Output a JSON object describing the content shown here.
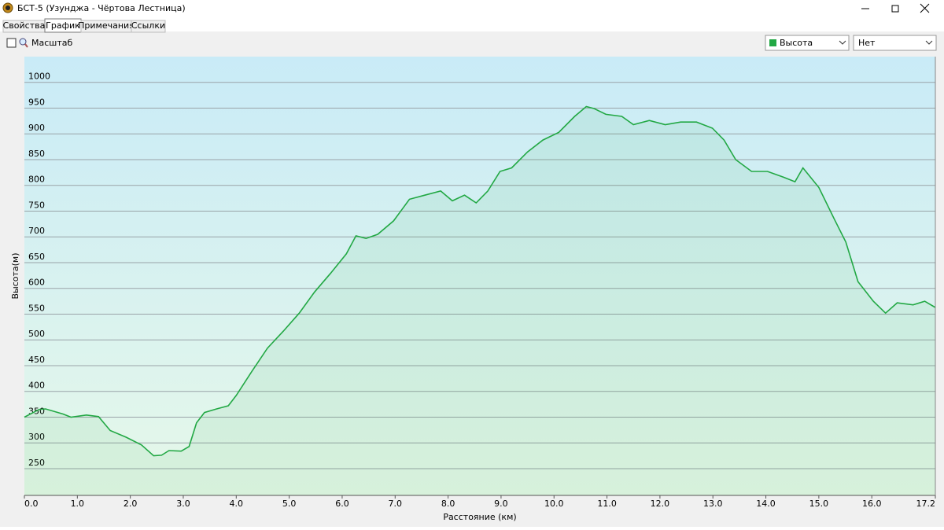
{
  "window": {
    "title": "БСТ-5 (Узунджа - Чёртова Лестница)"
  },
  "tabs": [
    "Свойства",
    "График",
    "Примечания",
    "Ссылки"
  ],
  "toolbar": {
    "scale_label": "Масштаб",
    "series_select": "Высота",
    "second_select": "Нет"
  },
  "chart_data": {
    "type": "area",
    "color": "#22a844",
    "grid": true,
    "x_label": "Расстояние  (км)",
    "y_label": "Высота(м)",
    "x": [
      0,
      0.28,
      0.4,
      0.73,
      0.88,
      1.17,
      1.4,
      1.62,
      1.92,
      2.21,
      2.44,
      2.59,
      2.73,
      2.96,
      3.11,
      3.25,
      3.4,
      3.63,
      3.85,
      4.0,
      4.29,
      4.59,
      4.89,
      5.19,
      5.48,
      5.78,
      6.08,
      6.26,
      6.45,
      6.67,
      6.97,
      7.27,
      7.56,
      7.86,
      8.08,
      8.31,
      8.53,
      8.75,
      8.98,
      9.2,
      9.5,
      9.79,
      10.09,
      10.39,
      10.61,
      10.76,
      10.98,
      11.28,
      11.5,
      11.8,
      12.1,
      12.39,
      12.69,
      12.99,
      13.21,
      13.43,
      13.73,
      14.03,
      14.33,
      14.55,
      14.7,
      15.0,
      15.29,
      15.51,
      15.74,
      16.03,
      16.26,
      16.48,
      16.78,
      17.0,
      17.2
    ],
    "values": [
      350,
      365,
      366,
      356,
      350,
      354,
      351,
      324,
      311,
      296,
      275,
      276,
      285,
      284,
      293,
      339,
      359,
      366,
      372,
      392,
      438,
      484,
      517,
      552,
      593,
      629,
      667,
      702,
      697,
      705,
      731,
      773,
      781,
      789,
      770,
      781,
      766,
      789,
      827,
      834,
      865,
      888,
      903,
      934,
      953,
      949,
      938,
      934,
      918,
      926,
      918,
      923,
      923,
      911,
      888,
      850,
      827,
      827,
      816,
      807,
      834,
      796,
      735,
      690,
      613,
      575,
      552,
      572,
      568,
      575,
      563
    ],
    "xlim": [
      0,
      17.2
    ],
    "xticks": [
      {
        "value": 0,
        "label": "0.0"
      },
      {
        "value": 1,
        "label": "1.0"
      },
      {
        "value": 2,
        "label": "2.0"
      },
      {
        "value": 3,
        "label": "3.0"
      },
      {
        "value": 4,
        "label": "4.0"
      },
      {
        "value": 5,
        "label": "5.0"
      },
      {
        "value": 6,
        "label": "6.0"
      },
      {
        "value": 7,
        "label": "7.0"
      },
      {
        "value": 8,
        "label": "8.0"
      },
      {
        "value": 9,
        "label": "9.0"
      },
      {
        "value": 10,
        "label": "10.0"
      },
      {
        "value": 11,
        "label": "11.0"
      },
      {
        "value": 12,
        "label": "12.0"
      },
      {
        "value": 13,
        "label": "13.0"
      },
      {
        "value": 14,
        "label": "14.0"
      },
      {
        "value": 15,
        "label": "15.0"
      },
      {
        "value": 16,
        "label": "16.0"
      },
      {
        "value": 17.2,
        "label": "17.2"
      }
    ],
    "ylim": [
      198,
      1050
    ],
    "yticks": [
      250,
      300,
      350,
      400,
      450,
      500,
      550,
      600,
      650,
      700,
      750,
      800,
      850,
      900,
      950,
      1000
    ]
  }
}
